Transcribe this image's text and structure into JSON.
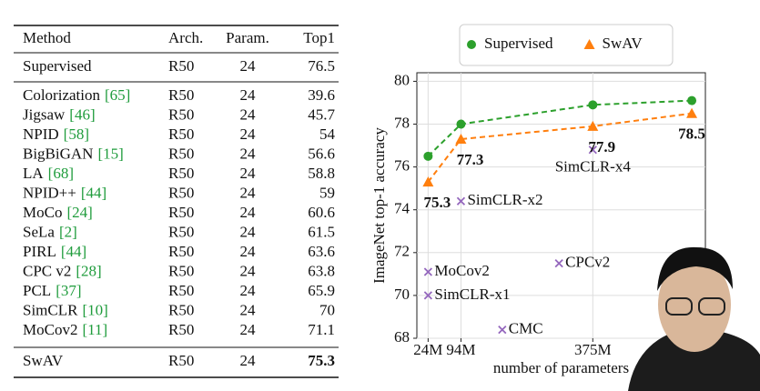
{
  "table": {
    "headers": [
      "Method",
      "Arch.",
      "Param.",
      "Top1"
    ],
    "baseline": {
      "method": "Supervised",
      "arch": "R50",
      "params": 24,
      "top1": 76.5
    },
    "rows": [
      {
        "method": "Colorization",
        "ref": "[65]",
        "arch": "R50",
        "params": 24,
        "top1": 39.6
      },
      {
        "method": "Jigsaw",
        "ref": "[46]",
        "arch": "R50",
        "params": 24,
        "top1": 45.7
      },
      {
        "method": "NPID",
        "ref": "[58]",
        "arch": "R50",
        "params": 24,
        "top1": 54.0
      },
      {
        "method": "BigBiGAN",
        "ref": "[15]",
        "arch": "R50",
        "params": 24,
        "top1": 56.6
      },
      {
        "method": "LA",
        "ref": "[68]",
        "arch": "R50",
        "params": 24,
        "top1": 58.8
      },
      {
        "method": "NPID++",
        "ref": "[44]",
        "arch": "R50",
        "params": 24,
        "top1": 59.0
      },
      {
        "method": "MoCo",
        "ref": "[24]",
        "arch": "R50",
        "params": 24,
        "top1": 60.6
      },
      {
        "method": "SeLa",
        "ref": "[2]",
        "arch": "R50",
        "params": 24,
        "top1": 61.5
      },
      {
        "method": "PIRL",
        "ref": "[44]",
        "arch": "R50",
        "params": 24,
        "top1": 63.6
      },
      {
        "method": "CPC v2",
        "ref": "[28]",
        "arch": "R50",
        "params": 24,
        "top1": 63.8
      },
      {
        "method": "PCL",
        "ref": "[37]",
        "arch": "R50",
        "params": 24,
        "top1": 65.9
      },
      {
        "method": "SimCLR",
        "ref": "[10]",
        "arch": "R50",
        "params": 24,
        "top1": 70.0
      },
      {
        "method": "MoCov2",
        "ref": "[11]",
        "arch": "R50",
        "params": 24,
        "top1": 71.1
      }
    ],
    "ours": {
      "method": "SwAV",
      "arch": "R50",
      "params": 24,
      "top1": 75.3
    }
  },
  "chart_data": {
    "type": "line",
    "y_label": "ImageNet top-1 accuracy",
    "x_label": "number of parameters",
    "x": [
      24,
      94,
      375,
      586
    ],
    "series": [
      {
        "name": "Supervised",
        "color": "#2ca02c",
        "marker": "circle",
        "values": [
          76.5,
          78.0,
          78.9,
          79.1
        ]
      },
      {
        "name": "SwAV",
        "color": "#ff7f0e",
        "marker": "triangle",
        "values": [
          75.3,
          77.3,
          77.9,
          78.5
        ],
        "data_labels": true
      }
    ],
    "others": {
      "color": "#9467bd",
      "points": [
        {
          "label": "SimCLR-x4",
          "x": 375,
          "y": 76.8
        },
        {
          "label": "SimCLR-x2",
          "x": 94,
          "y": 74.4
        },
        {
          "label": "MoCov2",
          "x": 24,
          "y": 71.1
        },
        {
          "label": "SimCLR-x1",
          "x": 24,
          "y": 70.0
        },
        {
          "label": "CPCv2",
          "x": 303,
          "y": 71.5
        },
        {
          "label": "CMC",
          "x": 182,
          "y": 68.4
        }
      ]
    },
    "xlim": [
      0,
      615
    ],
    "ylim": [
      68,
      80.4
    ],
    "xticks": [
      {
        "value": 24,
        "label": "24M"
      },
      {
        "value": 94,
        "label": "94M"
      },
      {
        "value": 375,
        "label": "375M"
      }
    ],
    "yticks": [
      68,
      70,
      72,
      74,
      76,
      78,
      80
    ],
    "grid": true
  }
}
